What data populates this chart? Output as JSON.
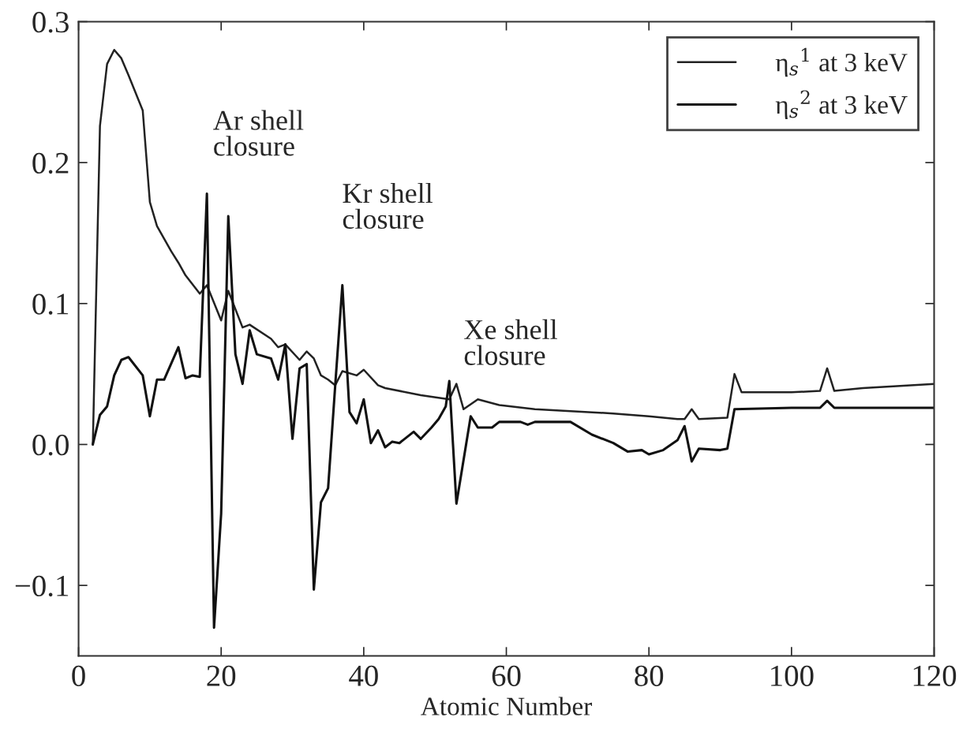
{
  "chart_data": {
    "type": "line",
    "xlabel": "Atomic Number",
    "xlim": [
      0,
      120
    ],
    "xticks": [
      0,
      20,
      40,
      60,
      80,
      100,
      120
    ],
    "ylim": [
      -0.15,
      0.3
    ],
    "yticks": [
      {
        "value": -0.1,
        "label": "−0.1"
      },
      {
        "value": 0,
        "label": "0.0"
      },
      {
        "value": 0.1,
        "label": "0.1"
      },
      {
        "value": 0.2,
        "label": "0.2"
      },
      {
        "value": 0.3,
        "label": "0.3"
      }
    ],
    "grid": false,
    "legend": "top right",
    "marker": "none",
    "line_style": "solid",
    "series": [
      {
        "name": "η$_{s}$$^{1}$ at 3 keV",
        "color": "#222222",
        "x": [
          2,
          3,
          4,
          5,
          6,
          7,
          9,
          10,
          11,
          13,
          14,
          15,
          17,
          18,
          20,
          21,
          22,
          23,
          24,
          27,
          28,
          29,
          31,
          32,
          33,
          34,
          35,
          36,
          37,
          39,
          40,
          42,
          43,
          48,
          52,
          53,
          54,
          56,
          59,
          64,
          75,
          80,
          84,
          85,
          86,
          87,
          91,
          92,
          93,
          100,
          104,
          105,
          106,
          110,
          120
        ],
        "values": [
          0.0,
          0.226,
          0.27,
          0.28,
          0.274,
          0.262,
          0.237,
          0.172,
          0.155,
          0.137,
          0.129,
          0.12,
          0.107,
          0.113,
          0.088,
          0.109,
          0.096,
          0.083,
          0.085,
          0.075,
          0.069,
          0.071,
          0.06,
          0.066,
          0.061,
          0.049,
          0.046,
          0.042,
          0.052,
          0.049,
          0.053,
          0.042,
          0.04,
          0.035,
          0.032,
          0.043,
          0.025,
          0.032,
          0.028,
          0.025,
          0.022,
          0.02,
          0.018,
          0.018,
          0.025,
          0.018,
          0.019,
          0.05,
          0.037,
          0.037,
          0.038,
          0.054,
          0.038,
          0.04,
          0.043
        ]
      },
      {
        "name": "η$_{s}$$^{2}$ at 3 keV",
        "color": "#111111",
        "x": [
          2,
          3,
          4,
          5,
          6,
          7,
          9,
          10,
          11,
          12,
          14,
          15,
          16,
          17,
          18,
          19,
          20,
          21,
          22,
          23,
          24,
          25,
          27,
          28,
          29,
          30,
          31,
          32,
          33,
          34,
          35,
          36,
          37,
          38,
          39,
          40,
          41,
          42,
          43,
          44,
          45,
          47,
          48,
          49.5,
          50.5,
          51.5,
          52,
          53,
          55,
          56,
          58,
          59,
          62,
          63,
          64,
          69,
          72,
          75,
          77,
          79,
          80,
          82,
          84,
          85,
          86,
          87,
          90,
          91,
          92,
          100,
          104,
          105,
          106,
          120
        ],
        "values": [
          0.0,
          0.021,
          0.027,
          0.049,
          0.06,
          0.062,
          0.049,
          0.02,
          0.046,
          0.046,
          0.069,
          0.047,
          0.049,
          0.048,
          0.178,
          -0.13,
          -0.049,
          0.162,
          0.064,
          0.043,
          0.081,
          0.064,
          0.061,
          0.046,
          0.071,
          0.004,
          0.054,
          0.057,
          -0.103,
          -0.041,
          -0.031,
          0.042,
          0.113,
          0.023,
          0.015,
          0.032,
          0.001,
          0.01,
          -0.002,
          0.002,
          0.001,
          0.009,
          0.004,
          0.012,
          0.018,
          0.027,
          0.045,
          -0.042,
          0.02,
          0.012,
          0.012,
          0.016,
          0.016,
          0.014,
          0.016,
          0.016,
          0.007,
          0.001,
          -0.005,
          -0.004,
          -0.007,
          -0.004,
          0.003,
          0.013,
          -0.012,
          -0.003,
          -0.004,
          -0.003,
          0.025,
          0.026,
          0.026,
          0.031,
          0.026,
          0.026
        ]
      }
    ],
    "annotations": [
      "Ar shell\nclosure",
      "Kr shell\nclosure",
      "Xe shell\nclosure"
    ]
  }
}
